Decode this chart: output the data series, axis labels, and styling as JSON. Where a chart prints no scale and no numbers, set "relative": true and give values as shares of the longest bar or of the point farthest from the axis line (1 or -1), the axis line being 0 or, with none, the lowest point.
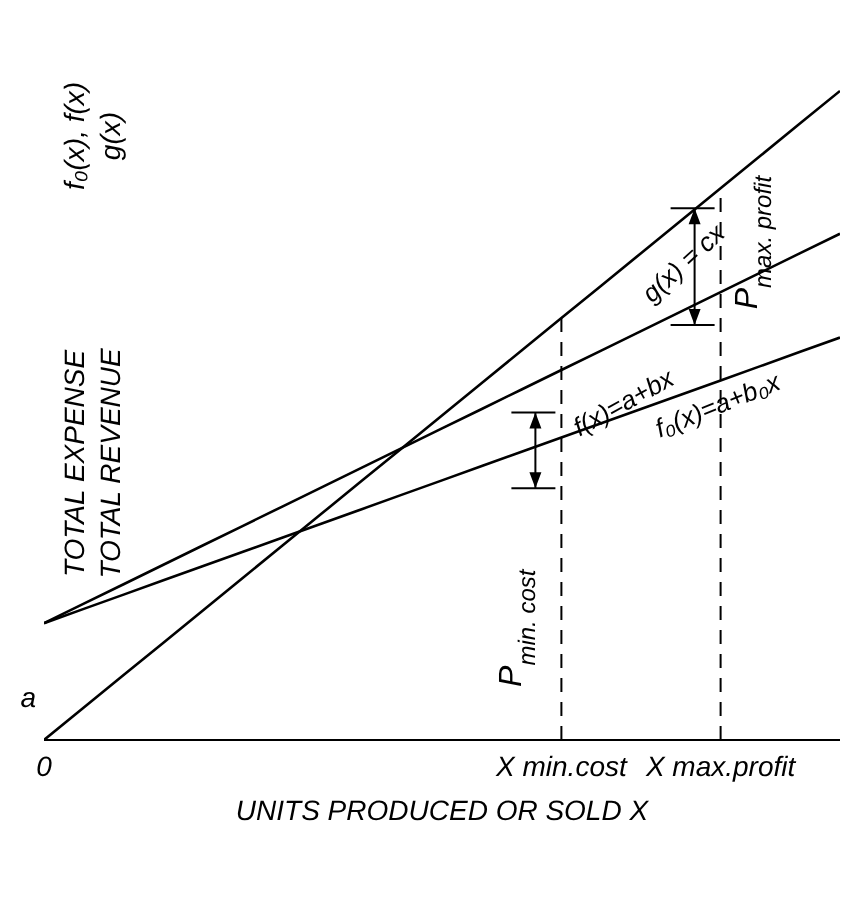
{
  "chart_data": {
    "type": "line",
    "relative": true,
    "xlabel": "UNITS PRODUCED OR SOLD X",
    "ylabel": "TOTAL EXPENSE\nTOTAL REVENUE",
    "categories": [
      "0",
      null,
      null,
      null,
      null,
      null,
      null,
      null,
      null,
      null,
      null,
      null,
      null,
      "X min.cost",
      null,
      null,
      null,
      "X max.profit",
      null,
      null,
      null
    ],
    "series": [
      {
        "name": "g(x) = cx",
        "color": "#000000",
        "values": [
          0,
          0.05,
          0.1,
          0.15,
          0.2,
          0.25,
          0.3,
          0.35,
          0.4,
          0.45,
          0.5,
          0.55,
          0.6,
          0.65,
          0.7,
          0.75,
          0.8,
          0.85,
          0.9,
          0.95,
          1
        ]
      },
      {
        "name": "f(x)=a+bx",
        "color": "#000000",
        "values": [
          0.18,
          0.21,
          0.24,
          0.27,
          0.3,
          0.33,
          0.36,
          0.39,
          0.42,
          0.45,
          0.48,
          0.51,
          0.54,
          0.57,
          0.6,
          0.63,
          0.66,
          0.69,
          0.72,
          0.75,
          0.78
        ]
      },
      {
        "name": "f₀(x)=a+b₀x",
        "color": "#000000",
        "values": [
          0.18,
          0.202,
          0.224,
          0.246,
          0.268,
          0.29,
          0.312,
          0.334,
          0.356,
          0.378,
          0.4,
          0.422,
          0.444,
          0.466,
          0.488,
          0.51,
          0.532,
          0.554,
          0.576,
          0.598,
          0.62
        ]
      }
    ],
    "ref_lines": [
      {
        "axis": "x",
        "value": "X min.cost",
        "color": "#000000",
        "line_style": "dashed"
      },
      {
        "axis": "x",
        "value": "X max.profit",
        "color": "#000000",
        "line_style": "dashed"
      }
    ],
    "annotations": [
      "f₀(x), f(x)\ng(x)",
      {
        "text": "a",
        "x": "0",
        "y": 0.18
      },
      "P$_{min. cost}$",
      "P$_{max. profit}$"
    ],
    "marker": "none",
    "line_style": "solid"
  }
}
